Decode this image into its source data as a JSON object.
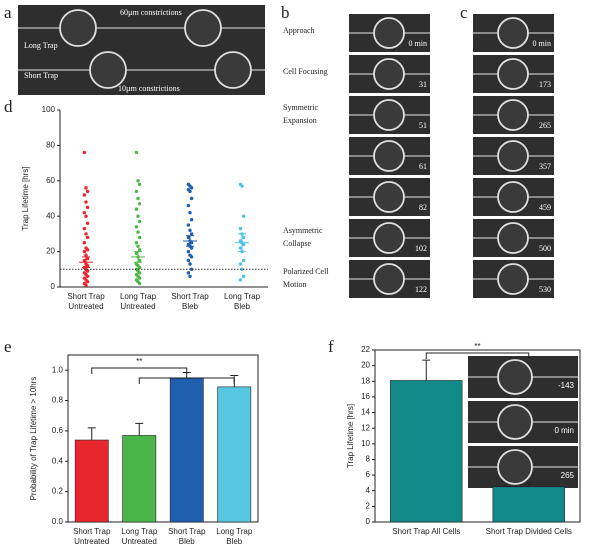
{
  "panel_labels": [
    "a",
    "b",
    "c",
    "d",
    "e",
    "f"
  ],
  "panel_a": {
    "long_trap": "Long Trap",
    "short_trap": "Short Trap",
    "constriction_60": "60µm constrictions",
    "constriction_10": "10µm constrictions"
  },
  "panel_b": {
    "stages": [
      "Approach",
      "Cell Focusing",
      "Symmetric Expansion",
      "Asymmetric Collapse",
      "Polarized Cell Motion"
    ],
    "times": [
      "0 min",
      "31",
      "51",
      "61",
      "82",
      "102",
      "122"
    ]
  },
  "panel_c": {
    "times": [
      "0 min",
      "173",
      "265",
      "357",
      "459",
      "500",
      "530"
    ]
  },
  "chart_data": [
    {
      "type": "scatter",
      "y_label": "Trap Lifetime [hrs]",
      "categories": [
        "Short Trap Untreated",
        "Long Trap Untreated",
        "Short Trap Bleb",
        "Long Trap Bleb"
      ],
      "groups": [
        {
          "color": "#e8262e",
          "values": [
            76,
            56,
            54,
            52,
            48,
            45,
            42,
            40,
            36,
            33,
            30,
            28,
            25,
            22,
            21,
            20,
            18,
            16,
            15,
            13,
            12,
            11,
            10,
            9,
            8,
            7,
            6,
            5,
            4,
            3,
            2,
            1
          ],
          "mean": 14,
          "error": 3
        },
        {
          "color": "#4db848",
          "values": [
            76,
            60,
            58,
            54,
            50,
            47,
            44,
            40,
            37,
            34,
            31,
            28,
            25,
            23,
            21,
            19,
            17,
            15,
            13,
            12,
            11,
            10,
            9,
            8,
            7,
            6,
            5,
            4,
            3,
            2
          ],
          "mean": 17,
          "error": 3
        },
        {
          "color": "#1f5fb0",
          "values": [
            58,
            57,
            56,
            55,
            54,
            50,
            46,
            42,
            38,
            35,
            32,
            30,
            28,
            26,
            25,
            24,
            23,
            22,
            20,
            18,
            17,
            15,
            13,
            10,
            8,
            6
          ],
          "mean": 26,
          "error": 3
        },
        {
          "color": "#4cc4ea",
          "values": [
            58,
            57,
            40,
            33,
            30,
            28,
            26,
            25,
            24,
            22,
            20,
            15,
            13,
            10,
            6,
            4
          ],
          "mean": 25,
          "error": 5
        }
      ],
      "threshold": 10,
      "ylim": [
        0,
        100
      ],
      "yticks": [
        0,
        20,
        40,
        60,
        80,
        100
      ]
    },
    {
      "type": "bar",
      "y_label": "Probability of Trap Lifetime > 10hrs",
      "categories": [
        "Short Trap Untreated",
        "Long Trap Untreated",
        "Short Trap Bleb",
        "Long Trap Bleb"
      ],
      "values": [
        0.54,
        0.57,
        0.95,
        0.89
      ],
      "errors": [
        0.08,
        0.08,
        0.035,
        0.075
      ],
      "colors": [
        "#e8262e",
        "#4ab548",
        "#1f5fb0",
        "#55c8e0"
      ],
      "annotation": "**",
      "ylim": [
        0,
        1.1
      ],
      "yticks": [
        {
          "value": 0,
          "label": "0.0"
        },
        {
          "value": 0.2,
          "label": "0.2"
        },
        {
          "value": 0.4,
          "label": "0.4"
        },
        {
          "value": 0.6,
          "label": "0.6"
        },
        {
          "value": 0.8,
          "label": "0.8"
        },
        {
          "value": 1,
          "label": "1.0"
        }
      ]
    },
    {
      "type": "bar",
      "y_label": "Trap Lifetime [hrs]",
      "categories": [
        "Short Trap All Cells",
        "Short Trap Divided Cells"
      ],
      "values": [
        18.1,
        4.5
      ],
      "errors": [
        2.6,
        0.5
      ],
      "colors": [
        "#138a8a",
        "#138a8a"
      ],
      "annotation": "**",
      "inset_times": [
        "-143",
        "0 min",
        "265"
      ],
      "ylim": [
        0,
        22
      ],
      "yticks": [
        0,
        2,
        4,
        6,
        8,
        10,
        12,
        14,
        16,
        18,
        20,
        22
      ]
    }
  ]
}
